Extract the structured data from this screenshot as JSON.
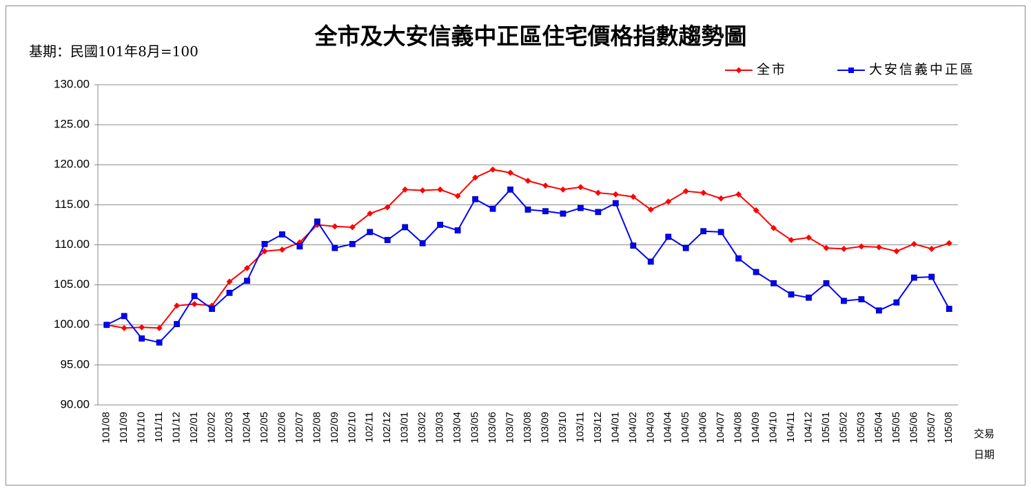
{
  "chart_data": {
    "type": "line",
    "title": "全市及大安信義中正區住宅價格指數趨勢圖",
    "subtitle": "基期：民國101年8月=100",
    "xlabel": [
      "交易",
      "日期"
    ],
    "categories": [
      "101/08",
      "101/09",
      "101/10",
      "101/11",
      "101/12",
      "102/01",
      "102/02",
      "102/03",
      "102/04",
      "102/05",
      "102/06",
      "102/07",
      "102/08",
      "102/09",
      "102/10",
      "102/11",
      "102/12",
      "103/01",
      "103/02",
      "103/03",
      "103/04",
      "103/05",
      "103/06",
      "103/07",
      "103/08",
      "103/09",
      "103/10",
      "103/11",
      "103/12",
      "104/01",
      "104/02",
      "104/03",
      "104/04",
      "104/05",
      "104/06",
      "104/07",
      "104/08",
      "104/09",
      "104/10",
      "104/11",
      "104/12",
      "105/01",
      "105/02",
      "105/03",
      "105/04",
      "105/05",
      "105/06",
      "105/07",
      "105/08"
    ],
    "series": [
      {
        "name": "全市",
        "color": "#ff0000",
        "marker": "diamond",
        "values": [
          100.0,
          99.6,
          99.7,
          99.6,
          102.4,
          102.6,
          102.4,
          105.4,
          107.1,
          109.2,
          109.4,
          110.3,
          112.5,
          112.3,
          112.2,
          113.9,
          114.7,
          116.9,
          116.8,
          116.9,
          116.1,
          118.4,
          119.4,
          119.0,
          118.0,
          117.4,
          116.9,
          117.2,
          116.5,
          116.3,
          116.0,
          114.4,
          115.4,
          116.7,
          116.5,
          115.8,
          116.3,
          114.3,
          112.1,
          110.6,
          110.9,
          109.6,
          109.5,
          109.8,
          109.7,
          109.2,
          110.1,
          109.5,
          110.2
        ]
      },
      {
        "name": "大安信義中正區",
        "color": "#0000ff",
        "marker": "square",
        "values": [
          100.0,
          101.1,
          98.3,
          97.8,
          100.1,
          103.6,
          102.0,
          104.0,
          105.5,
          110.1,
          111.3,
          109.8,
          112.9,
          109.6,
          110.1,
          111.6,
          110.6,
          112.2,
          110.2,
          112.5,
          111.8,
          115.7,
          114.5,
          116.9,
          114.4,
          114.2,
          113.9,
          114.6,
          114.1,
          115.2,
          109.9,
          107.9,
          111.0,
          109.6,
          111.7,
          111.6,
          108.3,
          106.6,
          105.2,
          103.8,
          103.4,
          105.2,
          103.0,
          103.2,
          101.8,
          102.8,
          105.9,
          106.0,
          102.0
        ]
      }
    ],
    "ylim": [
      90,
      130
    ],
    "yticks": [
      {
        "value": 90,
        "label": "90.00"
      },
      {
        "value": 95,
        "label": "95.00"
      },
      {
        "value": 100,
        "label": "100.00"
      },
      {
        "value": 105,
        "label": "105.00"
      },
      {
        "value": 110,
        "label": "110.00"
      },
      {
        "value": 115,
        "label": "115.00"
      },
      {
        "value": 120,
        "label": "120.00"
      },
      {
        "value": 125,
        "label": "125.00"
      },
      {
        "value": 130,
        "label": "130.00"
      }
    ],
    "grid": true,
    "legend": "top-right"
  }
}
